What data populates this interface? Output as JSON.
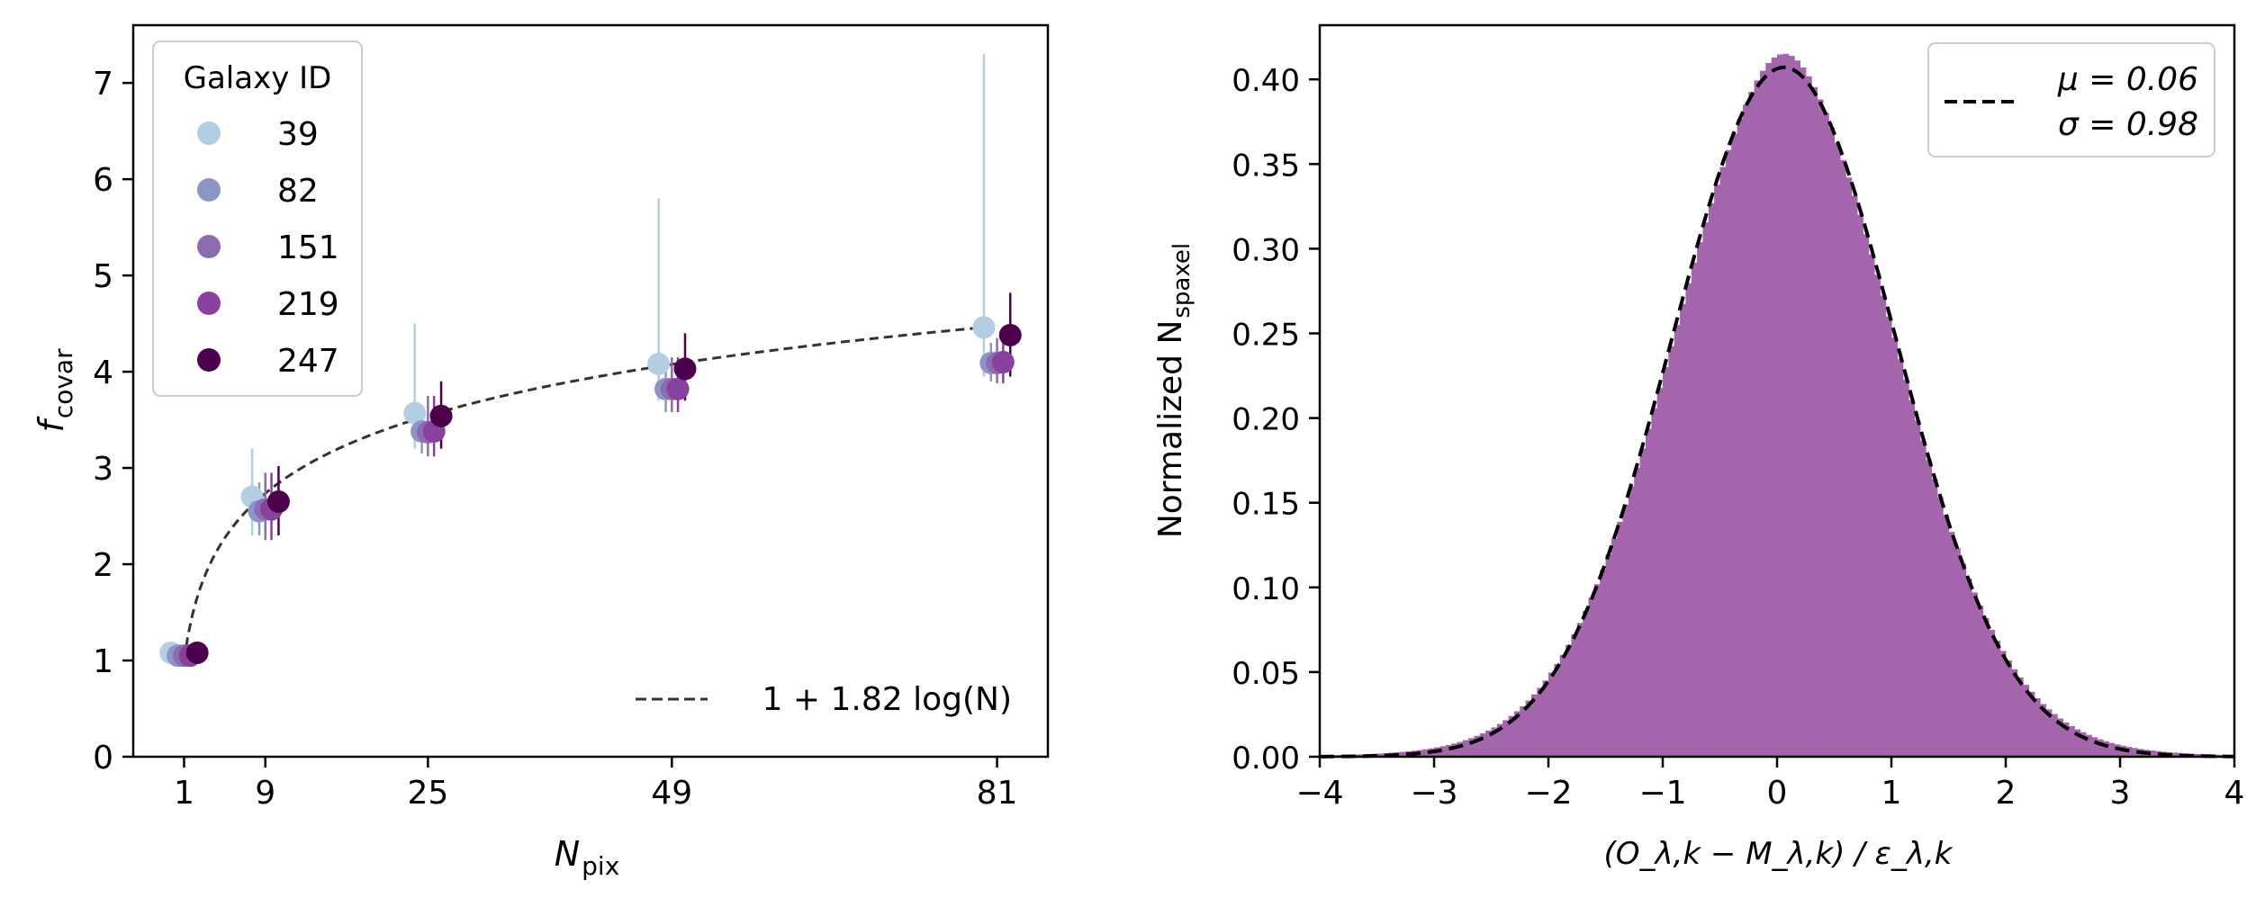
{
  "chart_data": [
    {
      "type": "scatter",
      "xlabel_main": "N",
      "xlabel_sub": "pix",
      "ylabel_main": "f",
      "ylabel_sub": "covar",
      "x_ticks": [
        1,
        9,
        25,
        49,
        81
      ],
      "y_ticks": [
        0,
        1,
        2,
        3,
        4,
        5,
        6,
        7
      ],
      "xlim": [
        -4,
        86
      ],
      "ylim": [
        0,
        7.6
      ],
      "legend": {
        "title": "Galaxy ID",
        "position": "upper-left"
      },
      "series": [
        {
          "name": "39",
          "color": "#b3cde3",
          "offset": -1.3,
          "points": [
            {
              "x": 1,
              "y": 1.08,
              "lo": 1.0,
              "hi": 1.12
            },
            {
              "x": 9,
              "y": 2.7,
              "lo": 2.3,
              "hi": 3.2
            },
            {
              "x": 25,
              "y": 3.57,
              "lo": 3.2,
              "hi": 4.5
            },
            {
              "x": 49,
              "y": 4.08,
              "lo": 3.7,
              "hi": 5.8
            },
            {
              "x": 81,
              "y": 4.46,
              "lo": 3.95,
              "hi": 7.3
            }
          ]
        },
        {
          "name": "82",
          "color": "#8c96c6",
          "offset": -0.6,
          "points": [
            {
              "x": 1,
              "y": 1.05,
              "lo": 1.0,
              "hi": 1.1
            },
            {
              "x": 9,
              "y": 2.55,
              "lo": 2.3,
              "hi": 2.85
            },
            {
              "x": 25,
              "y": 3.38,
              "lo": 3.15,
              "hi": 3.65
            },
            {
              "x": 49,
              "y": 3.82,
              "lo": 3.58,
              "hi": 4.1
            },
            {
              "x": 81,
              "y": 4.09,
              "lo": 3.9,
              "hi": 4.3
            }
          ]
        },
        {
          "name": "151",
          "color": "#8c6bb1",
          "offset": 0.0,
          "points": [
            {
              "x": 1,
              "y": 1.05,
              "lo": 1.0,
              "hi": 1.1
            },
            {
              "x": 9,
              "y": 2.57,
              "lo": 2.25,
              "hi": 2.95
            },
            {
              "x": 25,
              "y": 3.37,
              "lo": 3.12,
              "hi": 3.75
            },
            {
              "x": 49,
              "y": 3.82,
              "lo": 3.58,
              "hi": 4.15
            },
            {
              "x": 81,
              "y": 4.09,
              "lo": 3.88,
              "hi": 4.35
            }
          ]
        },
        {
          "name": "219",
          "color": "#88419d",
          "offset": 0.6,
          "points": [
            {
              "x": 1,
              "y": 1.05,
              "lo": 1.0,
              "hi": 1.1
            },
            {
              "x": 9,
              "y": 2.57,
              "lo": 2.25,
              "hi": 2.95
            },
            {
              "x": 25,
              "y": 3.38,
              "lo": 3.12,
              "hi": 3.75
            },
            {
              "x": 49,
              "y": 3.82,
              "lo": 3.58,
              "hi": 4.15
            },
            {
              "x": 81,
              "y": 4.1,
              "lo": 3.88,
              "hi": 4.35
            }
          ]
        },
        {
          "name": "247",
          "color": "#4d004b",
          "offset": 1.3,
          "points": [
            {
              "x": 1,
              "y": 1.08,
              "lo": 1.0,
              "hi": 1.12
            },
            {
              "x": 9,
              "y": 2.65,
              "lo": 2.3,
              "hi": 3.02
            },
            {
              "x": 25,
              "y": 3.54,
              "lo": 3.2,
              "hi": 3.9
            },
            {
              "x": 49,
              "y": 4.03,
              "lo": 3.7,
              "hi": 4.4
            },
            {
              "x": 81,
              "y": 4.38,
              "lo": 3.95,
              "hi": 4.82
            }
          ]
        }
      ],
      "fit": {
        "label": "1 + 1.82 log(N)",
        "a": 1,
        "b": 1.82,
        "x_range": [
          1,
          81
        ],
        "color": "#333333"
      }
    },
    {
      "type": "histogram",
      "ylabel_main": "Normalized N",
      "ylabel_sub": "spaxel",
      "xlabel": "(O_λ,k − M_λ,k) / ε_λ,k",
      "xlim": [
        -4,
        4
      ],
      "ylim": [
        0,
        0.432
      ],
      "x_ticks": [
        "−4",
        "−3",
        "−2",
        "−1",
        "0",
        "1",
        "2",
        "3",
        "4"
      ],
      "y_ticks": [
        "0.00",
        "0.05",
        "0.10",
        "0.15",
        "0.20",
        "0.25",
        "0.30",
        "0.35",
        "0.40"
      ],
      "bin_count": 160,
      "bar_color": "#a565ad",
      "hist_peak": 0.405,
      "hist_sigma": 0.98,
      "hist_mu": 0.06,
      "fit": {
        "mu": 0.06,
        "sigma": 0.98,
        "color": "#000000"
      },
      "legend": {
        "line1": "μ = 0.06",
        "line2": "σ = 0.98",
        "position": "upper-right"
      }
    }
  ],
  "left_y_tick_labels": [
    "0",
    "1",
    "2",
    "3",
    "4",
    "5",
    "6",
    "7"
  ],
  "left_x_tick_labels": [
    "1",
    "9",
    "25",
    "49",
    "81"
  ]
}
